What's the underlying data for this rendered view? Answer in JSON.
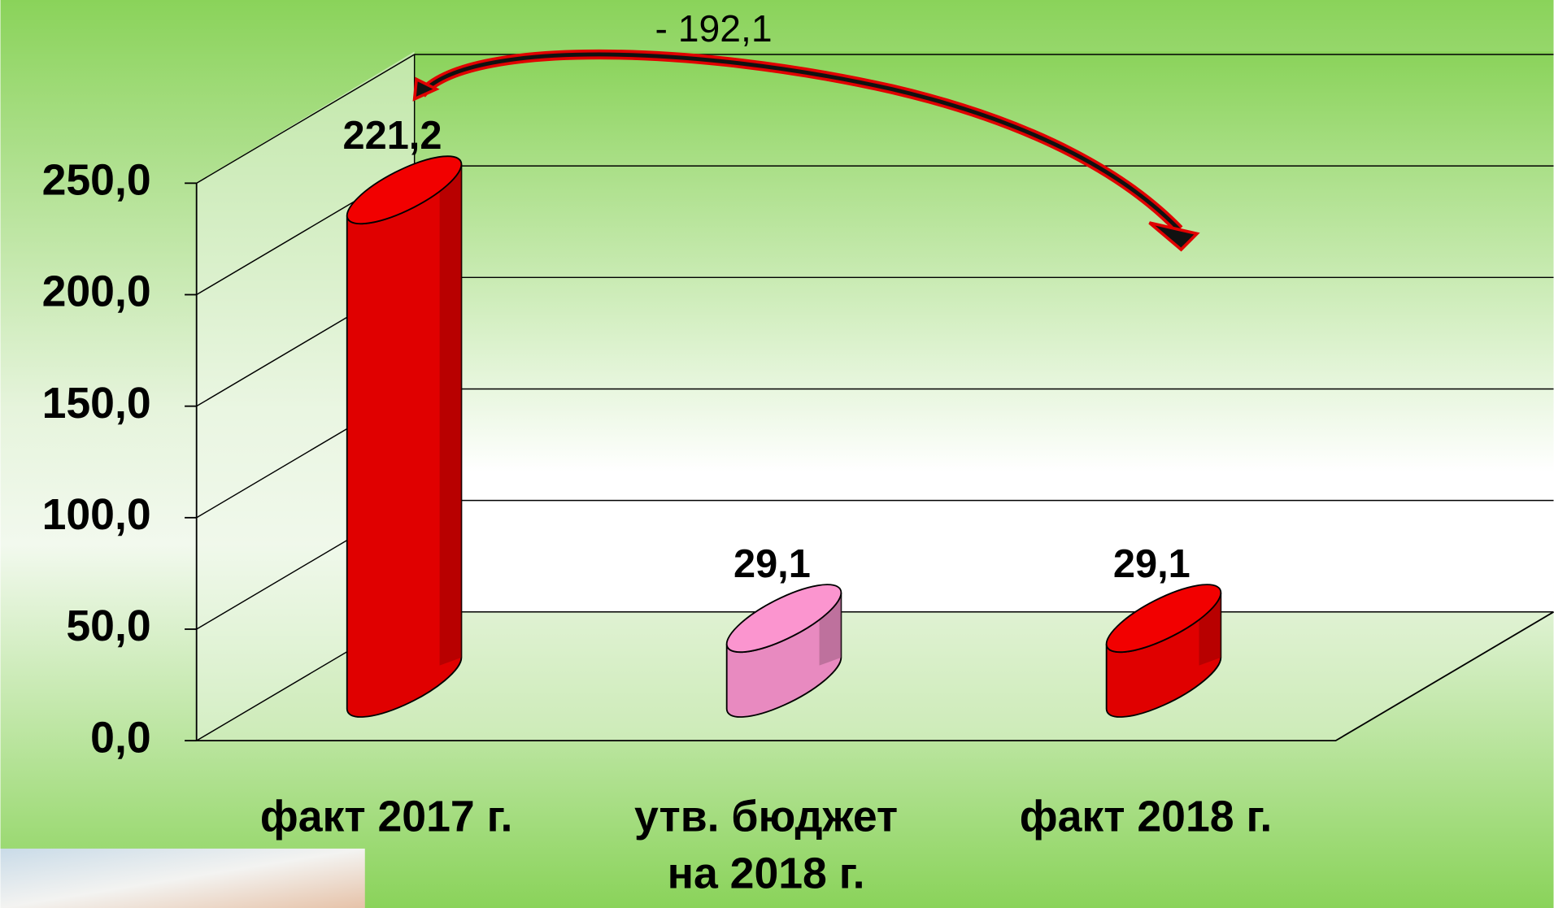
{
  "chart_data": {
    "type": "bar3d",
    "annotation": "- 192,1",
    "categories": [
      "факт 2017 г.",
      "утв. бюджет\nна  2018 г.",
      "факт 2018 г."
    ],
    "values": [
      221.2,
      29.1,
      29.1
    ],
    "value_labels": [
      "221,2",
      "29,1",
      "29,1"
    ],
    "colors": [
      "#e00000",
      "#e88ac0",
      "#e00000"
    ],
    "ylim": [
      0,
      250
    ],
    "yticks": [
      {
        "value": 0,
        "label": "0,0"
      },
      {
        "value": 50,
        "label": "50,0"
      },
      {
        "value": 100,
        "label": "100,0"
      },
      {
        "value": 150,
        "label": "150,0"
      },
      {
        "value": 200,
        "label": "200,0"
      },
      {
        "value": 250,
        "label": "250,0"
      }
    ],
    "grid": true
  }
}
